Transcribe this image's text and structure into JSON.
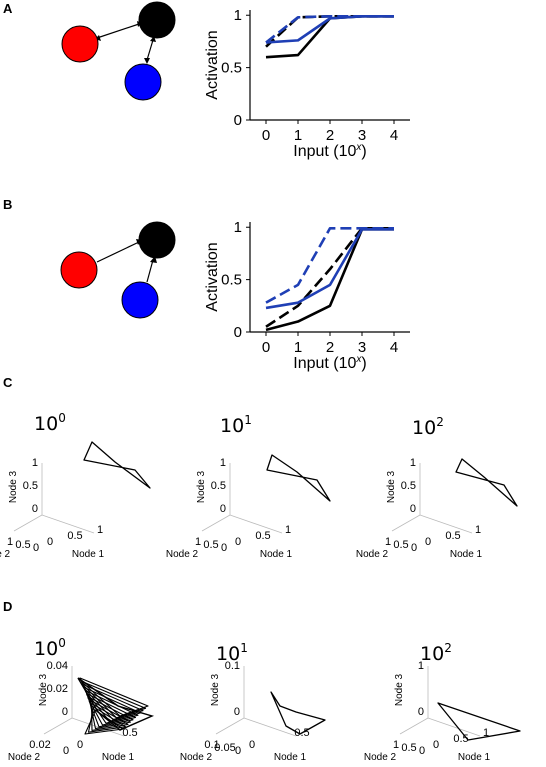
{
  "panels": {
    "A": "A",
    "B": "B",
    "C": "C",
    "D": "D"
  },
  "colors": {
    "node_red": "#ff0000",
    "node_black": "#000000",
    "node_blue": "#0000ff",
    "series_blue": "#1f3fb5",
    "series_black": "#000000"
  },
  "chart_data": [
    {
      "panel": "A",
      "type": "line",
      "xlabel_base": "Input (10",
      "xlabel_exp": "x",
      "xlabel_end": ")",
      "ylabel": "Activation",
      "x": [
        0,
        1,
        2,
        3,
        4
      ],
      "xticks": [
        "0",
        "1",
        "2",
        "3",
        "4"
      ],
      "yticks": [
        "0",
        "0.5",
        "1"
      ],
      "ylim": [
        0,
        1.05
      ],
      "series": [
        {
          "style": "solid",
          "color": "#000000",
          "values": [
            0.6,
            0.62,
            0.97,
            0.99,
            0.99
          ]
        },
        {
          "style": "dashed",
          "color": "#000000",
          "values": [
            0.7,
            0.98,
            0.99,
            0.99,
            0.99
          ]
        },
        {
          "style": "solid",
          "color": "#1f3fb5",
          "values": [
            0.74,
            0.76,
            0.97,
            0.99,
            0.99
          ]
        },
        {
          "style": "dashed",
          "color": "#1f3fb5",
          "values": [
            0.74,
            0.98,
            0.99,
            0.99,
            0.99
          ]
        }
      ]
    },
    {
      "panel": "B",
      "type": "line",
      "xlabel_base": "Input (10",
      "xlabel_exp": "x",
      "xlabel_end": ")",
      "ylabel": "Activation",
      "x": [
        0,
        1,
        2,
        3,
        4
      ],
      "xticks": [
        "0",
        "1",
        "2",
        "3",
        "4"
      ],
      "yticks": [
        "0",
        "0.5",
        "1"
      ],
      "ylim": [
        0,
        1.05
      ],
      "series": [
        {
          "style": "solid",
          "color": "#000000",
          "values": [
            0.02,
            0.1,
            0.25,
            0.98,
            0.98
          ]
        },
        {
          "style": "dashed",
          "color": "#000000",
          "values": [
            0.05,
            0.25,
            0.6,
            0.99,
            0.99
          ]
        },
        {
          "style": "solid",
          "color": "#1f3fb5",
          "values": [
            0.23,
            0.28,
            0.45,
            0.98,
            0.98
          ]
        },
        {
          "style": "dashed",
          "color": "#1f3fb5",
          "values": [
            0.28,
            0.45,
            0.99,
            0.99,
            0.99
          ]
        }
      ]
    }
  ],
  "panel_c": {
    "plots": [
      {
        "base": "10",
        "exp": "0",
        "z_ticks": [
          "0",
          "0.5",
          "1"
        ],
        "n2_ticks": [
          "1",
          "0.5",
          "0"
        ],
        "n1_ticks": [
          "0",
          "0.5",
          "1"
        ],
        "cycle": [
          [
            0.55,
            0.95,
            0.98
          ],
          [
            0.05,
            0.5,
            0.45
          ],
          [
            0.95,
            0.05,
            0.6
          ]
        ]
      },
      {
        "base": "10",
        "exp": "1",
        "z_ticks": [
          "0",
          "0.5",
          "1"
        ],
        "n2_ticks": [
          "1",
          "0.5",
          "0"
        ],
        "n1_ticks": [
          "0",
          "0.5",
          "1"
        ],
        "cycle": [
          [
            0.55,
            0.95,
            0.98
          ],
          [
            0.05,
            0.5,
            0.45
          ],
          [
            0.95,
            0.05,
            0.6
          ]
        ]
      },
      {
        "base": "10",
        "exp": "2",
        "z_ticks": [
          "0",
          "0.5",
          "1"
        ],
        "n2_ticks": [
          "1",
          "0.5",
          "0"
        ],
        "n1_ticks": [
          "0",
          "0.5",
          "1"
        ],
        "cycle": [
          [
            0.55,
            0.95,
            0.98
          ],
          [
            0.05,
            0.5,
            0.45
          ],
          [
            0.95,
            0.05,
            0.6
          ]
        ]
      }
    ],
    "axis_labels": {
      "node1": "Node 1",
      "node2": "Node 2",
      "node3": "Node 3"
    }
  },
  "panel_d": {
    "plots": [
      {
        "base": "10",
        "exp": "0",
        "z_ticks": [
          "0",
          "0.02",
          "0.04"
        ],
        "n2_ticks": [
          "0.02",
          "0"
        ],
        "n1_ticks": [
          "0",
          "0.5"
        ]
      },
      {
        "base": "10",
        "exp": "1",
        "z_ticks": [
          "0",
          "0.1"
        ],
        "n2_ticks": [
          "0.1",
          "0.05",
          "0"
        ],
        "n1_ticks": [
          "0",
          "0.5"
        ]
      },
      {
        "base": "10",
        "exp": "2",
        "z_ticks": [
          "0",
          "1"
        ],
        "n2_ticks": [
          "1",
          "0.5",
          "0"
        ],
        "n1_ticks": [
          "0",
          "0.5",
          "1"
        ]
      }
    ],
    "axis_labels": {
      "node1": "Node 1",
      "node2": "Node 2",
      "node3": "Node 3"
    }
  }
}
